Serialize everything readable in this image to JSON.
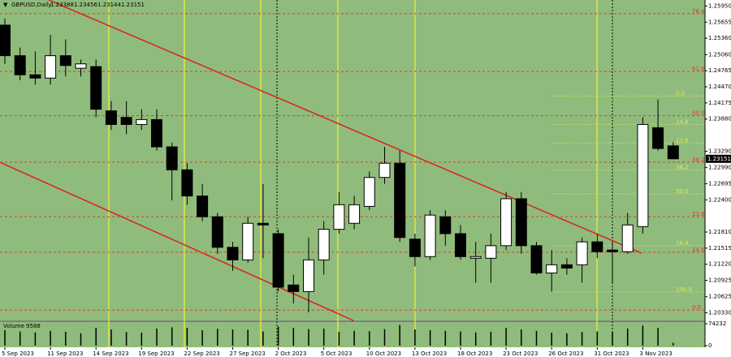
{
  "chart_data": {
    "type": "candlestick",
    "title": "GBPUSD,Daily",
    "categories": [
      "5 Sep 2023",
      null,
      null,
      "11 Sep 2023",
      null,
      null,
      "14 Sep 2023",
      null,
      null,
      "19 Sep 2023",
      null,
      null,
      "22 Sep 2023",
      null,
      null,
      "27 Sep 2023",
      null,
      null,
      "2 Oct 2023",
      null,
      null,
      "5 Oct 2023",
      null,
      null,
      "10 Oct 2023",
      null,
      null,
      "13 Oct 2023",
      null,
      null,
      "18 Oct 2023",
      null,
      null,
      "23 Oct 2023",
      null,
      null,
      "26 Oct 2023",
      null,
      null,
      "31 Oct 2023",
      null,
      null,
      "3 Nov 2023",
      null,
      null
    ],
    "open": [
      1.256,
      1.2504,
      1.2469,
      1.2463,
      1.2504,
      1.2481,
      1.2484,
      1.2403,
      1.2391,
      1.2378,
      1.2387,
      1.2337,
      1.2295,
      1.2247,
      1.2209,
      1.2153,
      1.213,
      1.2197,
      1.2178,
      1.2084,
      1.2072,
      1.213,
      1.2186,
      1.2197,
      1.2228,
      1.2281,
      1.2307,
      1.2168,
      1.2136,
      1.2209,
      1.2178,
      1.2133,
      1.2133,
      1.2156,
      1.2242,
      1.2156,
      1.2106,
      1.2121,
      1.2121,
      1.2163,
      1.2148,
      1.2145,
      1.2191,
      1.2372,
      1.23388
    ],
    "high": [
      1.2572,
      1.2519,
      1.2512,
      1.2542,
      1.2534,
      1.2497,
      1.2497,
      1.2421,
      1.2421,
      1.2406,
      1.2406,
      1.2345,
      1.2307,
      1.2269,
      1.2216,
      1.2163,
      1.2209,
      1.2269,
      1.2186,
      1.2103,
      1.2171,
      1.2201,
      1.2254,
      1.2247,
      1.2292,
      1.2337,
      1.233,
      1.2178,
      1.2221,
      1.2221,
      1.2194,
      1.2163,
      1.2178,
      1.2254,
      1.2254,
      1.2163,
      1.2148,
      1.2133,
      1.2171,
      1.2178,
      1.2163,
      1.2216,
      1.2391,
      1.2424,
      1.23456
    ],
    "low": [
      1.2489,
      1.2459,
      1.2451,
      1.2451,
      1.2466,
      1.2466,
      1.2391,
      1.2368,
      1.236,
      1.2368,
      1.233,
      1.2239,
      1.2231,
      1.2201,
      1.2141,
      1.211,
      1.2125,
      1.2133,
      1.2072,
      1.205,
      1.2034,
      1.2103,
      1.2178,
      1.2186,
      1.2221,
      1.2269,
      1.2163,
      1.2118,
      1.213,
      1.2156,
      1.213,
      1.2088,
      1.2088,
      1.2148,
      1.2141,
      1.2103,
      1.2072,
      1.2103,
      1.2088,
      1.2133,
      1.2088,
      1.2141,
      1.2178,
      1.233,
      1.23144
    ],
    "close": [
      1.2504,
      1.2469,
      1.2463,
      1.2504,
      1.2486,
      1.2489,
      1.2406,
      1.2378,
      1.2378,
      1.2387,
      1.2337,
      1.2295,
      1.2247,
      1.2209,
      1.2153,
      1.213,
      1.2197,
      1.2194,
      1.208,
      1.2072,
      1.213,
      1.2186,
      1.2231,
      1.2231,
      1.2281,
      1.2307,
      1.2171,
      1.2136,
      1.2212,
      1.2178,
      1.2136,
      1.2136,
      1.2156,
      1.2242,
      1.2156,
      1.2106,
      1.2121,
      1.2115,
      1.2163,
      1.2145,
      1.2145,
      1.2194,
      1.2378,
      1.2334,
      1.23151
    ],
    "up_color": "#ffffff",
    "down_color": "#000000",
    "ylim": [
      1.2019,
      1.2606
    ],
    "yticks": [
      {
        "value": 1.2595,
        "label": "1.25950"
      },
      {
        "value": 1.25655,
        "label": "1.25655"
      },
      {
        "value": 1.2536,
        "label": "1.25360"
      },
      {
        "value": 1.2506,
        "label": "1.25060"
      },
      {
        "value": 1.24765,
        "label": "1.24765"
      },
      {
        "value": 1.2447,
        "label": "1.24470"
      },
      {
        "value": 1.24175,
        "label": "1.24175"
      },
      {
        "value": 1.2388,
        "label": "1.23880"
      },
      {
        "value": 1.2329,
        "label": "1.23290"
      },
      {
        "value": 1.2299,
        "label": "1.22990"
      },
      {
        "value": 1.22695,
        "label": "1.22695"
      },
      {
        "value": 1.224,
        "label": "1.22400"
      },
      {
        "value": 1.2181,
        "label": "1.21810"
      },
      {
        "value": 1.21515,
        "label": "1.21515"
      },
      {
        "value": 1.2122,
        "label": "1.21220"
      },
      {
        "value": 1.20925,
        "label": "1.20925"
      },
      {
        "value": 1.20625,
        "label": "1.20625"
      },
      {
        "value": 1.2033,
        "label": "1.20330"
      }
    ],
    "levels": [
      {
        "value": 1.2581,
        "label": "76.4",
        "color": "#e03a2a"
      },
      {
        "value": 1.2475,
        "label": "61.8",
        "color": "#e03a2a"
      },
      {
        "value": 1.2394,
        "label": "50.0",
        "color": "#e03a2a"
      },
      {
        "value": 1.2309,
        "label": "38.2",
        "color": "#e03a2a"
      },
      {
        "value": 1.2209,
        "label": "23.6",
        "color": "#e03a2a"
      },
      {
        "value": 1.2144,
        "label": "14.6",
        "color": "#e03a2a"
      },
      {
        "value": 1.2038,
        "label": "0.0",
        "color": "#e03a2a"
      },
      {
        "value": 1.243,
        "label": "0.0",
        "color": "#e6e65a"
      },
      {
        "value": 1.2378,
        "label": "14.6",
        "color": "#e6e65a"
      },
      {
        "value": 1.2344,
        "label": "23.6",
        "color": "#e6e65a"
      },
      {
        "value": 1.2295,
        "label": "38.2",
        "color": "#e6e65a"
      },
      {
        "value": 1.2251,
        "label": "50.0",
        "color": "#e6e65a"
      },
      {
        "value": 1.2156,
        "label": "76.4",
        "color": "#e6e65a"
      },
      {
        "value": 1.2071,
        "label": "100.0",
        "color": "#e6e65a"
      }
    ],
    "volume": {
      "label": "Volume",
      "color": "#000000",
      "values": [
        52000,
        48000,
        45000,
        50000,
        47000,
        42000,
        60000,
        55000,
        46000,
        44000,
        58000,
        62000,
        60000,
        52000,
        57000,
        55000,
        54000,
        48000,
        65000,
        60000,
        56000,
        58000,
        47000,
        50000,
        49000,
        56000,
        70000,
        55000,
        52000,
        50000,
        48000,
        45000,
        47000,
        60000,
        55000,
        50000,
        44000,
        42000,
        46000,
        48000,
        46000,
        58000,
        68000,
        60000,
        9588
      ],
      "ylim": [
        0,
        74232
      ],
      "yticks": [
        74232,
        0
      ]
    }
  }
}
